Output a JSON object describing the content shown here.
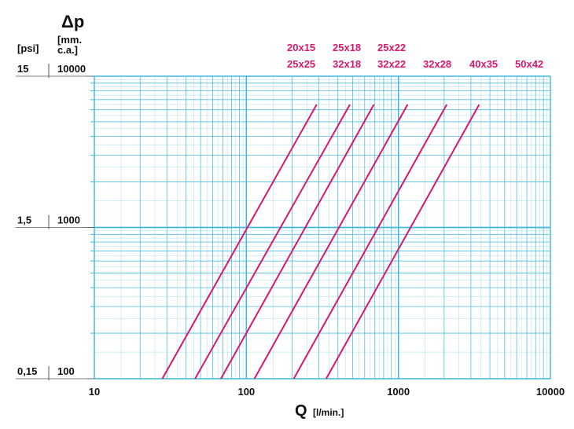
{
  "chart_data": {
    "type": "line",
    "title": "Δp",
    "xlabel": "Q",
    "xlabel_unit": "[l/min.]",
    "ylabel_left_unit": "[psi]",
    "ylabel_right_unit_line1": "[mm.",
    "ylabel_right_unit_line2": "c.a.]",
    "x_scale": "log",
    "y_scale": "log",
    "xlim": [
      10,
      10000
    ],
    "ylim": [
      100,
      10000
    ],
    "grid": true,
    "x_ticks": [
      "10",
      "100",
      "1000",
      "10000"
    ],
    "y_ticks": [
      {
        "value": 10000,
        "label": "10000",
        "psi": "15"
      },
      {
        "value": 1000,
        "label": "1000",
        "psi": "1,5"
      },
      {
        "value": 100,
        "label": "100",
        "psi": "0,15"
      }
    ],
    "legend_rows": [
      [
        "20x15",
        "25x18",
        "25x22"
      ],
      [
        "25x25",
        "32x18",
        "32x22",
        "32x28",
        "40x35",
        "50x42"
      ]
    ],
    "series": [
      {
        "x": [
          28,
          290
        ],
        "y": [
          100,
          6500
        ]
      },
      {
        "x": [
          46,
          480
        ],
        "y": [
          100,
          6500
        ]
      },
      {
        "x": [
          68,
          690
        ],
        "y": [
          100,
          6500
        ]
      },
      {
        "x": [
          113,
          1150
        ],
        "y": [
          100,
          6500
        ]
      },
      {
        "x": [
          205,
          2080
        ],
        "y": [
          100,
          6500
        ]
      },
      {
        "x": [
          335,
          3400
        ],
        "y": [
          100,
          6500
        ]
      }
    ],
    "colors": {
      "grid": "#3fb8dc",
      "line": "#d6196e",
      "text": "#111111"
    }
  }
}
